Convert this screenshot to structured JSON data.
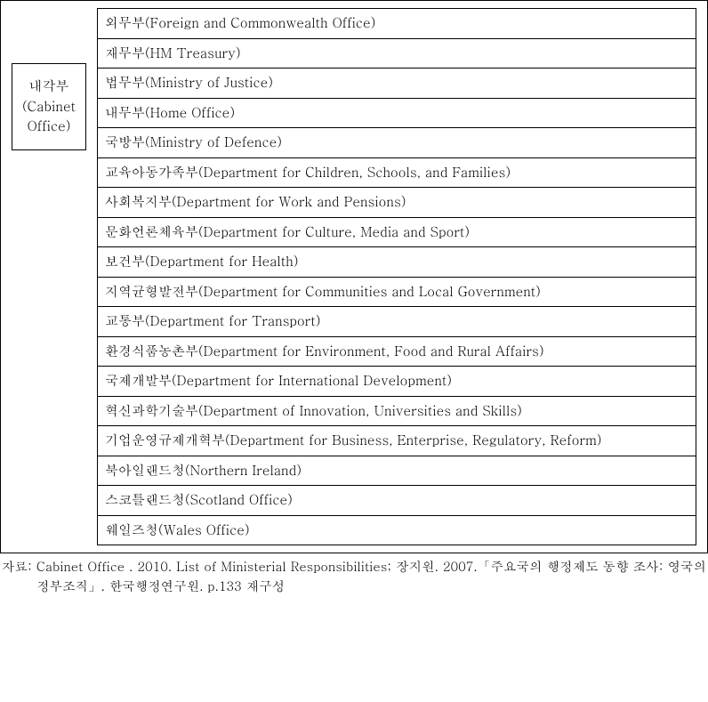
{
  "cabinet": {
    "label_line1": "내각부",
    "label_line2": "(Cabinet",
    "label_line3": "Office)"
  },
  "ministries": [
    "외무부(Foreign and Commonwealth Office)",
    "재무부(HM Treasury)",
    "법무부(Ministry of Justice)",
    "내무부(Home Office)",
    "국방부(Ministry of Defence)",
    "교육아동가족부(Department for Children, Schools, and Families)",
    "사회복지부(Department for Work and Pensions)",
    "문화언론체육부(Department for Culture, Media and Sport)",
    "보건부(Department for Health)",
    "지역균형발전부(Department for Communities and Local Government)",
    "교통부(Department for Transport)",
    "환경식품농촌부(Department for Environment, Food and Rural Affairs)",
    "국제개발부(Department for International Development)",
    "혁신과학기술부(Department of Innovation, Universities and Skills)",
    "기업운영규제개혁부(Department for Business, Enterprise, Regulatory, Reform)",
    "북아일랜드청(Northern Ireland)",
    "스코틀랜드청(Scotland Office)",
    "웨일즈청(Wales Office)"
  ],
  "source": {
    "text": "자료: Cabinet Office . 2010. List of Ministerial Responsibilities; 장지원. 2007.「주요국의 행정제도 동향 조사: 영국의 정부조직」. 한국행정연구원. p.133 재구성"
  },
  "style": {
    "background_color": "#ffffff",
    "text_color": "#000000",
    "border_color": "#000000",
    "font_family": "Batang, 바탕, Times New Roman, serif",
    "font_size_main": 15,
    "font_size_source": 14.5
  }
}
